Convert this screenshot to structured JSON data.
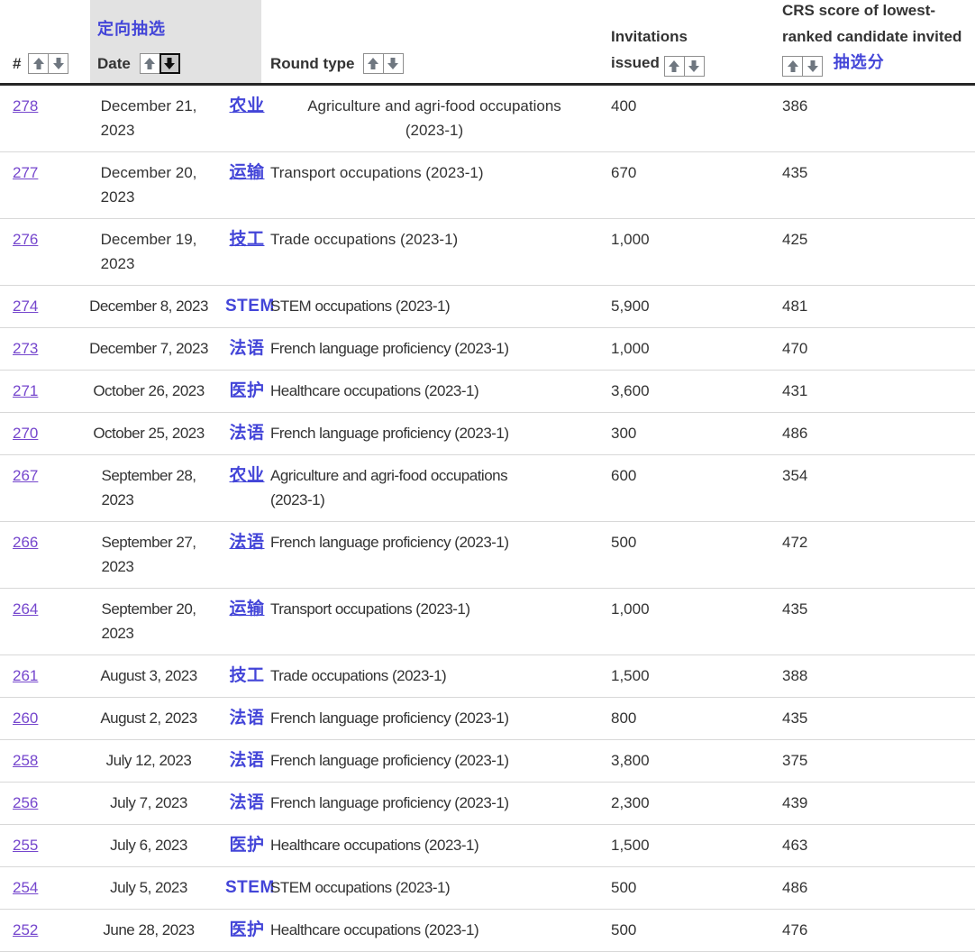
{
  "header": {
    "hash_label": "#",
    "annotation_date": "定向抽选",
    "date_label": "Date",
    "round_label": "Round type",
    "invitations_label": "Invitations issued",
    "crs_label": "CRS score of lowest-ranked candidate invited",
    "annotation_crs": "抽选分",
    "sort_state": "Date descending active"
  },
  "colors": {
    "annotation_blue": "#4345d8",
    "link_purple": "#7546cd",
    "header_cell_gray": "#e2e2e2",
    "text": "#333333"
  },
  "icons": {
    "sort_ascending": "arrow-up-icon",
    "sort_descending": "arrow-down-icon"
  },
  "rows": [
    {
      "num": "278",
      "date": "December 21,\n2023",
      "tag": "农业",
      "tag_underline": true,
      "round": "Agriculture and agri-food occupations\n(2023-1)",
      "round_center": true,
      "invitations": "400",
      "crs": "386",
      "condensed": false
    },
    {
      "num": "277",
      "date": "December 20,\n2023",
      "tag": "运输",
      "tag_underline": true,
      "round": "Transport occupations (2023-1)",
      "round_center": false,
      "invitations": "670",
      "crs": "435",
      "condensed": false
    },
    {
      "num": "276",
      "date": "December 19,\n2023",
      "tag": "技工",
      "tag_underline": true,
      "round": "Trade occupations (2023-1)",
      "round_center": false,
      "invitations": "1,000",
      "crs": "425",
      "condensed": false
    },
    {
      "num": "274",
      "date": "December 8, 2023",
      "tag": "STEM",
      "tag_underline": false,
      "round": "STEM occupations (2023-1)",
      "round_center": false,
      "invitations": "5,900",
      "crs": "481",
      "condensed": true
    },
    {
      "num": "273",
      "date": "December 7, 2023",
      "tag": "法语",
      "tag_underline": false,
      "round": "French language proficiency (2023-1)",
      "round_center": false,
      "invitations": "1,000",
      "crs": "470",
      "condensed": true
    },
    {
      "num": "271",
      "date": "October 26, 2023",
      "tag": "医护",
      "tag_underline": false,
      "round": "Healthcare occupations (2023-1)",
      "round_center": false,
      "invitations": "3,600",
      "crs": "431",
      "condensed": true
    },
    {
      "num": "270",
      "date": "October 25, 2023",
      "tag": "法语",
      "tag_underline": false,
      "round": "French language proficiency (2023-1)",
      "round_center": false,
      "invitations": "300",
      "crs": "486",
      "condensed": true
    },
    {
      "num": "267",
      "date": "September 28,\n2023",
      "tag": "农业",
      "tag_underline": true,
      "round": "Agriculture and agri-food occupations\n(2023-1)",
      "round_center": false,
      "invitations": "600",
      "crs": "354",
      "condensed": true
    },
    {
      "num": "266",
      "date": "September 27,\n2023",
      "tag": "法语",
      "tag_underline": true,
      "round": "French language proficiency (2023-1)",
      "round_center": false,
      "invitations": "500",
      "crs": "472",
      "condensed": true
    },
    {
      "num": "264",
      "date": "September 20,\n2023",
      "tag": "运输",
      "tag_underline": true,
      "round": "Transport occupations (2023-1)",
      "round_center": false,
      "invitations": "1,000",
      "crs": "435",
      "condensed": true
    },
    {
      "num": "261",
      "date": "August 3, 2023",
      "tag": "技工",
      "tag_underline": false,
      "round": "Trade occupations (2023-1)",
      "round_center": false,
      "invitations": "1,500",
      "crs": "388",
      "condensed": true
    },
    {
      "num": "260",
      "date": "August 2, 2023",
      "tag": "法语",
      "tag_underline": false,
      "round": "French language proficiency (2023-1)",
      "round_center": false,
      "invitations": "800",
      "crs": "435",
      "condensed": true
    },
    {
      "num": "258",
      "date": "July 12, 2023",
      "tag": "法语",
      "tag_underline": false,
      "round": "French language proficiency (2023-1)",
      "round_center": false,
      "invitations": "3,800",
      "crs": "375",
      "condensed": true
    },
    {
      "num": "256",
      "date": "July 7, 2023",
      "tag": "法语",
      "tag_underline": false,
      "round": "French language proficiency (2023-1)",
      "round_center": false,
      "invitations": "2,300",
      "crs": "439",
      "condensed": true
    },
    {
      "num": "255",
      "date": "July 6, 2023",
      "tag": "医护",
      "tag_underline": false,
      "round": "Healthcare occupations (2023-1)",
      "round_center": false,
      "invitations": "1,500",
      "crs": "463",
      "condensed": true
    },
    {
      "num": "254",
      "date": "July 5, 2023",
      "tag": "STEM",
      "tag_underline": false,
      "round": "STEM occupations (2023-1)",
      "round_center": false,
      "invitations": "500",
      "crs": "486",
      "condensed": true
    },
    {
      "num": "252",
      "date": "June 28, 2023",
      "tag": "医护",
      "tag_underline": false,
      "round": "Healthcare occupations (2023-1)",
      "round_center": false,
      "invitations": "500",
      "crs": "476",
      "condensed": true
    }
  ]
}
